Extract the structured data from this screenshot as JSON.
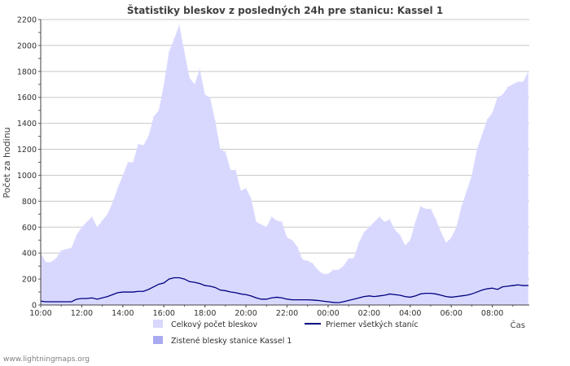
{
  "chart_data": {
    "type": "area",
    "title": "Štatistiky bleskov z posledných 24h pre stanicu: Kassel 1",
    "xlabel": "Čas",
    "ylabel": "Počet za hodinu",
    "ylim": [
      0,
      2200
    ],
    "y_ticks": [
      0,
      200,
      400,
      600,
      800,
      1000,
      1200,
      1400,
      1600,
      1800,
      2000,
      2200
    ],
    "x_range_hours": [
      10,
      33.8
    ],
    "x_ticks": [
      "10:00",
      "12:00",
      "14:00",
      "16:00",
      "18:00",
      "20:00",
      "22:00",
      "00:00",
      "02:00",
      "04:00",
      "06:00",
      "08:00"
    ],
    "grid": true,
    "colors": {
      "total_fill": "#d8d8ff",
      "station_fill": "#aaaaf0",
      "average_line": "#000080",
      "grid": "#c8c8c8"
    },
    "series": [
      {
        "name": "Celkový počet bleskov",
        "kind": "area",
        "x": [
          10.0,
          10.25,
          10.5,
          10.75,
          11.0,
          11.25,
          11.5,
          11.75,
          12.0,
          12.25,
          12.5,
          12.75,
          13.0,
          13.25,
          13.5,
          13.75,
          14.0,
          14.25,
          14.5,
          14.75,
          15.0,
          15.25,
          15.5,
          15.75,
          16.0,
          16.25,
          16.5,
          16.75,
          17.0,
          17.25,
          17.5,
          17.75,
          18.0,
          18.25,
          18.5,
          18.75,
          19.0,
          19.25,
          19.5,
          19.75,
          20.0,
          20.25,
          20.5,
          20.75,
          21.0,
          21.25,
          21.5,
          21.75,
          22.0,
          22.25,
          22.5,
          22.75,
          23.0,
          23.25,
          23.5,
          23.75,
          24.0,
          24.25,
          24.5,
          24.75,
          25.0,
          25.25,
          25.5,
          25.75,
          26.0,
          26.25,
          26.5,
          26.75,
          27.0,
          27.25,
          27.5,
          27.75,
          28.0,
          28.25,
          28.5,
          28.75,
          29.0,
          29.25,
          29.5,
          29.75,
          30.0,
          30.25,
          30.5,
          30.75,
          31.0,
          31.25,
          31.5,
          31.75,
          32.0,
          32.25,
          32.5,
          32.75,
          33.0,
          33.25,
          33.5,
          33.75
        ],
        "values": [
          400,
          330,
          330,
          360,
          420,
          430,
          440,
          540,
          600,
          640,
          680,
          600,
          650,
          700,
          790,
          900,
          1000,
          1100,
          1100,
          1240,
          1230,
          1300,
          1450,
          1500,
          1700,
          1950,
          2050,
          2160,
          1950,
          1750,
          1700,
          1820,
          1620,
          1600,
          1420,
          1200,
          1180,
          1040,
          1040,
          880,
          900,
          820,
          640,
          620,
          600,
          680,
          650,
          640,
          520,
          500,
          450,
          350,
          340,
          320,
          270,
          240,
          240,
          270,
          270,
          300,
          360,
          360,
          480,
          560,
          600,
          640,
          680,
          640,
          660,
          580,
          540,
          460,
          500,
          640,
          760,
          740,
          740,
          660,
          560,
          480,
          520,
          600,
          760,
          880,
          1000,
          1200,
          1310,
          1430,
          1480,
          1600,
          1620,
          1680,
          1700,
          1720,
          1720,
          1800
        ]
      },
      {
        "name": "Priemer všetkých staníc",
        "kind": "line",
        "x": [
          10.0,
          10.25,
          10.5,
          10.75,
          11.0,
          11.25,
          11.5,
          11.75,
          12.0,
          12.25,
          12.5,
          12.75,
          13.0,
          13.25,
          13.5,
          13.75,
          14.0,
          14.25,
          14.5,
          14.75,
          15.0,
          15.25,
          15.5,
          15.75,
          16.0,
          16.25,
          16.5,
          16.75,
          17.0,
          17.25,
          17.5,
          17.75,
          18.0,
          18.25,
          18.5,
          18.75,
          19.0,
          19.25,
          19.5,
          19.75,
          20.0,
          20.25,
          20.5,
          20.75,
          21.0,
          21.25,
          21.5,
          21.75,
          22.0,
          22.25,
          22.5,
          22.75,
          23.0,
          23.25,
          23.5,
          23.75,
          24.0,
          24.25,
          24.5,
          24.75,
          25.0,
          25.25,
          25.5,
          25.75,
          26.0,
          26.25,
          26.5,
          26.75,
          27.0,
          27.25,
          27.5,
          27.75,
          28.0,
          28.25,
          28.5,
          28.75,
          29.0,
          29.25,
          29.5,
          29.75,
          30.0,
          30.25,
          30.5,
          30.75,
          31.0,
          31.25,
          31.5,
          31.75,
          32.0,
          32.25,
          32.5,
          32.75,
          33.0,
          33.25,
          33.5,
          33.75
        ],
        "values": [
          30,
          25,
          25,
          25,
          25,
          25,
          25,
          45,
          50,
          50,
          55,
          45,
          55,
          65,
          80,
          95,
          100,
          100,
          100,
          105,
          105,
          120,
          140,
          160,
          170,
          200,
          210,
          210,
          200,
          180,
          175,
          165,
          150,
          145,
          135,
          115,
          110,
          100,
          95,
          85,
          80,
          70,
          55,
          45,
          45,
          55,
          60,
          55,
          45,
          40,
          40,
          40,
          40,
          38,
          35,
          30,
          25,
          20,
          18,
          25,
          35,
          45,
          55,
          65,
          70,
          65,
          70,
          75,
          85,
          80,
          75,
          65,
          60,
          70,
          85,
          90,
          90,
          85,
          75,
          65,
          60,
          65,
          70,
          75,
          85,
          100,
          115,
          125,
          130,
          120,
          140,
          145,
          150,
          155,
          150,
          150
        ]
      }
    ],
    "legend": [
      {
        "label": "Celkový počet bleskov",
        "marker": "fill",
        "color": "#d8d8ff"
      },
      {
        "label": "Priemer všetkých staníc",
        "marker": "line",
        "color": "#000080"
      },
      {
        "label": "Zistené blesky stanice Kassel 1",
        "marker": "fill",
        "color": "#aaaaf0"
      }
    ]
  },
  "footer": {
    "credit": "www.lightningmaps.org"
  }
}
